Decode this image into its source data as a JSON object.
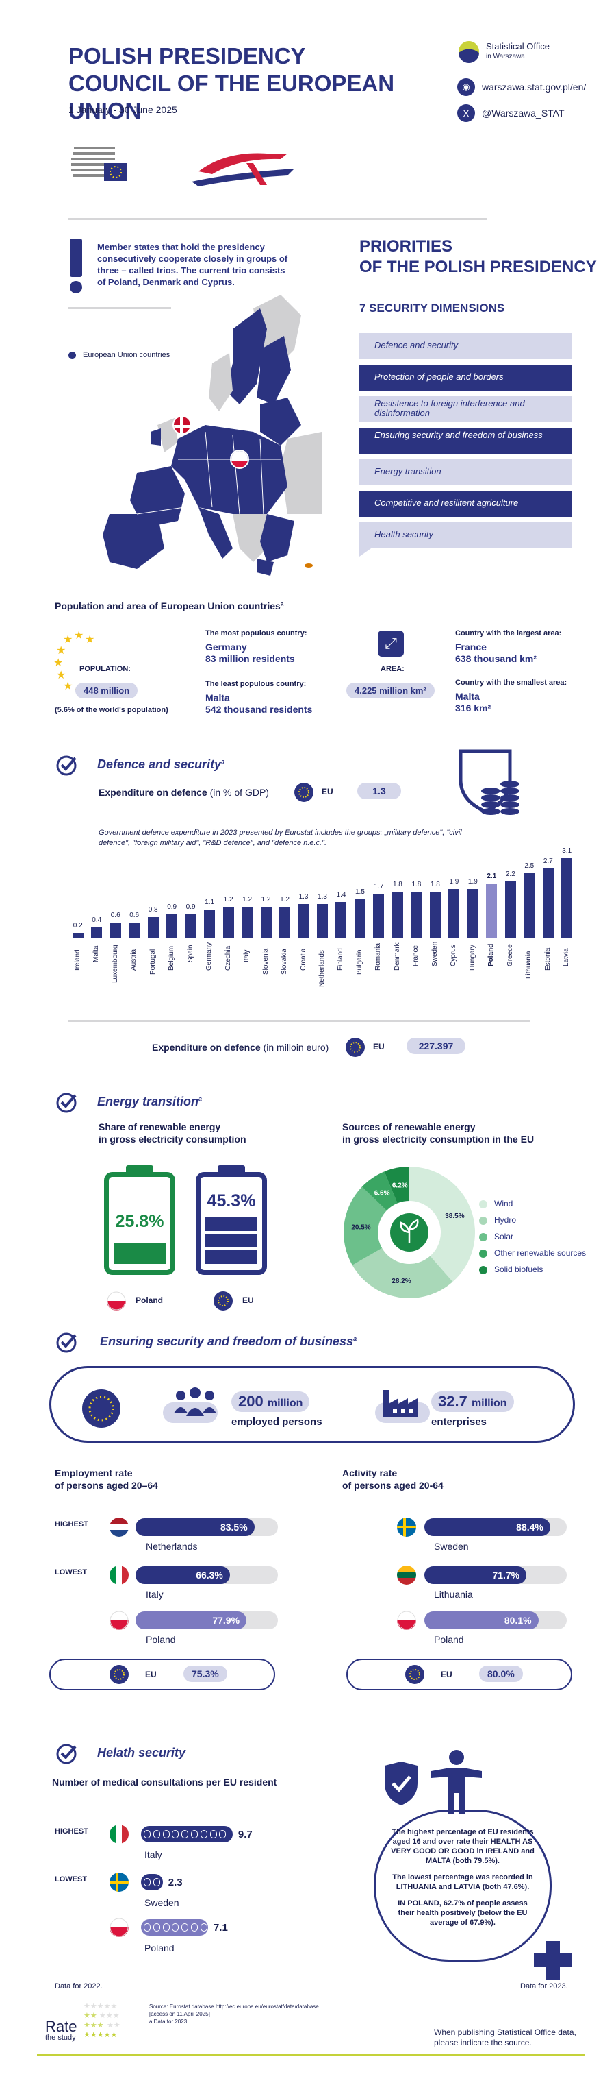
{
  "header": {
    "title_line1": "POLISH PRESIDENCY",
    "title_line2": "COUNCIL OF THE EUROPEAN UNION",
    "dates": "1 January - 30 June 2025",
    "office_name": "Statistical Office",
    "office_city": "in Warszawa",
    "website": "warszawa.stat.gov.pl/en/",
    "twitter": "@Warszawa_STAT"
  },
  "trio": {
    "text": "Member states that hold the presidency consecutively cooperate closely in groups of three – called trios. The current trio consists of Poland, Denmark and Cyprus.",
    "legend": "European Union countries"
  },
  "priorities": {
    "title_line1": "PRIORITIES",
    "title_line2": "OF THE POLISH PRESIDENCY",
    "subtitle": "7  SECURITY DIMENSIONS",
    "items": [
      {
        "label": "Defence and security",
        "style": "light"
      },
      {
        "label": "Protection of people and borders",
        "style": "dark"
      },
      {
        "label": "Resistence to foreign interference and disinformation",
        "style": "light"
      },
      {
        "label": "Ensuring security and freedom of business",
        "style": "dark"
      },
      {
        "label": "Energy transition",
        "style": "light"
      },
      {
        "label": "Competitive and resilitent agriculture",
        "style": "dark"
      },
      {
        "label": "Health security",
        "style": "light"
      }
    ]
  },
  "population": {
    "heading": "Population and area of European Union countries",
    "heading_mark": "a",
    "pop_label": "POPULATION:",
    "pop_value": "448 million",
    "pop_share": "(5.6% of the world's population)",
    "most_pop_label": "The most populous country:",
    "most_pop_country": "Germany",
    "most_pop_value": "83 million residents",
    "least_pop_label": "The least populous country:",
    "least_pop_country": "Malta",
    "least_pop_value": "542 thousand residents",
    "area_label": "AREA:",
    "area_value": "4.225 million km²",
    "largest_label": "Country with the largest area:",
    "largest_country": "France",
    "largest_value": "638 thousand km²",
    "smallest_label": "Country with the smallest area:",
    "smallest_country": "Malta",
    "smallest_value": "316 km²"
  },
  "defence": {
    "heading": "Defence and security",
    "heading_mark": "a",
    "gdp_label_bold": "Expenditure on defence",
    "gdp_label_rest": "(in % of GDP)",
    "eu_label": "EU",
    "eu_gdp_value": "1.3",
    "note": "Government defence expenditure in 2023 presented by Eurostat includes the groups: „military defence\", \"civil defence\", \"foreign military aid\", \"R&D defence\", and \"defence n.e.c.\".",
    "euro_label_bold": "Expenditure on defence",
    "euro_label_rest": "(in milloin euro)",
    "eu_euro_value": "227.397"
  },
  "chart_data": {
    "type": "bar",
    "title": "Expenditure on defence (in % of GDP)",
    "categories": [
      "Ireland",
      "Malta",
      "Luxembourg",
      "Austria",
      "Portugal",
      "Belgium",
      "Spain",
      "Germany",
      "Czechia",
      "Italy",
      "Slovenia",
      "Slovakia",
      "Croatia",
      "Netherlands",
      "Finland",
      "Bulgaria",
      "Romania",
      "Denmark",
      "France",
      "Sweden",
      "Cyprus",
      "Hungary",
      "Poland",
      "Greece",
      "Lithuania",
      "Estonia",
      "Latvia"
    ],
    "values": [
      0.2,
      0.4,
      0.6,
      0.6,
      0.8,
      0.9,
      0.9,
      1.1,
      1.2,
      1.2,
      1.2,
      1.2,
      1.3,
      1.3,
      1.4,
      1.5,
      1.7,
      1.8,
      1.8,
      1.8,
      1.9,
      1.9,
      2.1,
      2.2,
      2.5,
      2.7,
      3.1
    ],
    "highlight": "Poland",
    "bar_color": "#2b3380",
    "highlight_color": "#8b89c9"
  },
  "energy": {
    "heading": "Energy transition",
    "heading_mark": "a",
    "share_title_1": "Share of renewable energy",
    "share_title_2": "in gross electricity consumption",
    "poland_value": "25.8%",
    "poland_label": "Poland",
    "eu_value": "45.3%",
    "eu_label": "EU",
    "sources_title_1": "Sources of renewable energy",
    "sources_title_2": "in gross electricity consumption in the EU",
    "sources": [
      {
        "name": "Wind",
        "value": 38.5,
        "label": "38.5%",
        "color": "#d4ecdc"
      },
      {
        "name": "Hydro",
        "value": 28.2,
        "label": "28.2%",
        "color": "#a9d8b8"
      },
      {
        "name": "Solar",
        "value": 20.5,
        "label": "20.5%",
        "color": "#6cc08b"
      },
      {
        "name": "Other renewable sources",
        "value": 6.6,
        "label": "6.6%",
        "color": "#3aa663"
      },
      {
        "name": "Solid biofuels",
        "value": 6.2,
        "label": "6.2%",
        "color": "#1a8a46"
      }
    ]
  },
  "business": {
    "heading": "Ensuring security and freedom of business",
    "heading_mark": "a",
    "employed_value": "200",
    "employed_unit": "million",
    "employed_label": "employed persons",
    "enterprises_value": "32.7",
    "enterprises_unit": "million",
    "enterprises_label": "enterprises",
    "emp_title_1": "Employment rate",
    "emp_title_2": "of persons aged 20–64",
    "act_title_1": "Activity rate",
    "act_title_2": "of persons aged 20-64",
    "highest_label": "HIGHEST",
    "lowest_label": "LOWEST",
    "employment": [
      {
        "country": "Netherlands",
        "value": 83.5,
        "label": "83.5%"
      },
      {
        "country": "Italy",
        "value": 66.3,
        "label": "66.3%"
      },
      {
        "country": "Poland",
        "value": 77.9,
        "label": "77.9%"
      }
    ],
    "activity": [
      {
        "country": "Sweden",
        "value": 88.4,
        "label": "88.4%"
      },
      {
        "country": "Lithuania",
        "value": 71.7,
        "label": "71.7%"
      },
      {
        "country": "Poland",
        "value": 80.1,
        "label": "80.1%"
      }
    ],
    "eu_label": "EU",
    "eu_employment": "75.3%",
    "eu_activity": "80.0%"
  },
  "health": {
    "heading": "Helath security",
    "consult_title": "Number of medical consultations per EU resident",
    "highest_label": "HIGHEST",
    "lowest_label": "LOWEST",
    "consultations": [
      {
        "country": "Italy",
        "value": 9.7,
        "label": "9.7"
      },
      {
        "country": "Sweden",
        "value": 2.3,
        "label": "2.3"
      },
      {
        "country": "Poland",
        "value": 7.1,
        "label": "7.1"
      }
    ],
    "box_p1": "The highest percentage of EU residents aged 16 and over rate their HEALTH AS VERY GOOD OR GOOD in IRELAND and MALTA (both 79.5%).",
    "box_p2": "The lowest percentage was recorded in LITHUANIA and LATVIA (both 47.6%).",
    "box_p3": "IN POLAND, 62.7% of people assess their health positively (below the EU average of 67.9%).",
    "data_left": "Data for 2022.",
    "data_right": "Data for 2023."
  },
  "footer": {
    "source_1": "Source: Eurostat database http://ec.europa.eu/eurostat/data/database",
    "source_2": "[access on 11 April 2025]",
    "source_3": "a Data for 2023.",
    "rate_1": "Rate",
    "rate_2": "the study",
    "publish_1": "When publishing Statistical Office data,",
    "publish_2": "please indicate the source."
  }
}
